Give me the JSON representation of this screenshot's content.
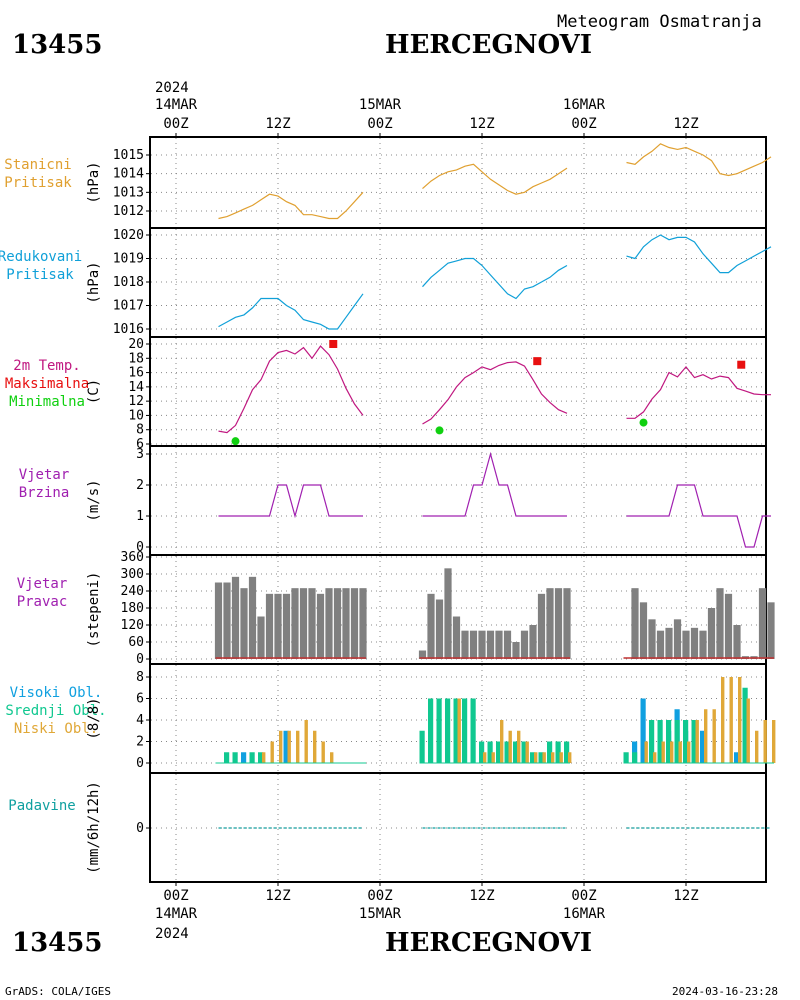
{
  "header": {
    "station_id": "13455",
    "station_name": "HERCEGNOVI",
    "subtitle": "Meteogram Osmatranja"
  },
  "footer": {
    "station_id": "13455",
    "station_name": "HERCEGNOVI",
    "credit": "GrADS: COLA/IGES",
    "timestamp": "2024-03-16-23:28"
  },
  "time_axis": {
    "top_year": "2024",
    "bottom_year": "2024",
    "dates": [
      "14MAR",
      "15MAR",
      "16MAR"
    ],
    "tick_labels": [
      "00Z",
      "12Z",
      "00Z",
      "12Z",
      "00Z",
      "12Z"
    ]
  },
  "panel_labels": {
    "pressure": [
      "Stanicni",
      "Pritisak"
    ],
    "pressure_unit": "(hPa)",
    "reduced": [
      "Redukovani",
      "Pritisak"
    ],
    "reduced_unit": "(hPa)",
    "temp": [
      "2m Temp.",
      "Maksimalna",
      "Minimalna"
    ],
    "temp_unit": "(C)",
    "wind_speed": [
      "Vjetar",
      "Brzina"
    ],
    "wind_speed_unit": "(m/s)",
    "wind_dir": [
      "Vjetar",
      "Pravac"
    ],
    "wind_dir_unit": "(stepeni)",
    "clouds": [
      "Visoki Obl.",
      "Srednji Obl.",
      "Niski Obl."
    ],
    "clouds_unit": "(8/8)",
    "precip": [
      "Padavine"
    ],
    "precip_unit": "(mm/6h/12h)"
  },
  "colors": {
    "pressure": "#e0a030",
    "reduced": "#10a0d8",
    "temp": "#c01880",
    "tmax": "#e81010",
    "tmin": "#10d010",
    "wind": "#a020b0",
    "dir_bar": "#808080",
    "cloud_high": "#10a0e0",
    "cloud_mid": "#10c890",
    "cloud_low": "#e0a838",
    "precip": "#10a0a0"
  },
  "chart_data": [
    {
      "type": "line",
      "title": "Stanicni Pritisak",
      "ylabel": "(hPa)",
      "ylim": [
        1011.3,
        1015.8
      ],
      "yticks": [
        1012,
        1013,
        1014,
        1015
      ],
      "grid": true,
      "segments": [
        {
          "x": [
            5,
            6,
            7,
            8,
            9,
            10,
            11,
            12,
            13,
            14,
            15,
            16,
            17,
            18,
            19,
            20,
            21,
            22
          ],
          "y": [
            1011.6,
            1011.7,
            1011.9,
            1012.1,
            1012.3,
            1012.6,
            1012.9,
            1012.8,
            1012.5,
            1012.3,
            1011.8,
            1011.8,
            1011.7,
            1011.6,
            1011.6,
            1012.0,
            1012.5,
            1013.0
          ]
        },
        {
          "x": [
            29,
            30,
            31,
            32,
            33,
            34,
            35,
            36,
            37,
            38,
            39,
            40,
            41,
            42,
            43,
            44,
            45,
            46
          ],
          "y": [
            1013.2,
            1013.6,
            1013.9,
            1014.1,
            1014.2,
            1014.4,
            1014.5,
            1014.1,
            1013.7,
            1013.4,
            1013.1,
            1012.9,
            1013.0,
            1013.3,
            1013.5,
            1013.7,
            1014.0,
            1014.3
          ]
        },
        {
          "x": [
            53,
            54,
            55,
            56,
            57,
            58,
            59,
            60,
            61,
            62,
            63,
            64,
            65,
            66,
            67,
            68,
            69,
            70
          ],
          "y": [
            1014.6,
            1014.5,
            1014.9,
            1015.2,
            1015.6,
            1015.4,
            1015.3,
            1015.4,
            1015.2,
            1015.0,
            1014.7,
            1014.0,
            1013.9,
            1014.0,
            1014.2,
            1014.4,
            1014.6,
            1014.9
          ]
        }
      ]
    },
    {
      "type": "line",
      "title": "Redukovani Pritisak",
      "ylabel": "(hPa)",
      "ylim": [
        1015.7,
        1020.3
      ],
      "yticks": [
        1016,
        1017,
        1018,
        1019,
        1020
      ],
      "grid": true,
      "segments": [
        {
          "x": [
            5,
            6,
            7,
            8,
            9,
            10,
            11,
            12,
            13,
            14,
            15,
            16,
            17,
            18,
            19,
            20,
            21,
            22
          ],
          "y": [
            1016.1,
            1016.3,
            1016.5,
            1016.6,
            1016.9,
            1017.3,
            1017.3,
            1017.3,
            1017.0,
            1016.8,
            1016.4,
            1016.3,
            1016.2,
            1016.0,
            1016.0,
            1016.5,
            1017.0,
            1017.5
          ]
        },
        {
          "x": [
            29,
            30,
            31,
            32,
            33,
            34,
            35,
            36,
            37,
            38,
            39,
            40,
            41,
            42,
            43,
            44,
            45,
            46
          ],
          "y": [
            1017.8,
            1018.2,
            1018.5,
            1018.8,
            1018.9,
            1019.0,
            1019.0,
            1018.7,
            1018.3,
            1017.9,
            1017.5,
            1017.3,
            1017.7,
            1017.8,
            1018.0,
            1018.2,
            1018.5,
            1018.7
          ]
        },
        {
          "x": [
            53,
            54,
            55,
            56,
            57,
            58,
            59,
            60,
            61,
            62,
            63,
            64,
            65,
            66,
            67,
            68,
            69,
            70
          ],
          "y": [
            1019.1,
            1019.0,
            1019.5,
            1019.8,
            1020.0,
            1019.8,
            1019.9,
            1019.9,
            1019.7,
            1019.2,
            1018.8,
            1018.4,
            1018.4,
            1018.7,
            1018.9,
            1019.1,
            1019.3,
            1019.5
          ]
        }
      ]
    },
    {
      "type": "line",
      "title": "2m Temp. Maksimalna Minimalna",
      "ylabel": "(C)",
      "ylim": [
        5,
        21
      ],
      "yticks": [
        6,
        8,
        10,
        12,
        14,
        16,
        18,
        20
      ],
      "grid": true,
      "segments": [
        {
          "x": [
            5,
            6,
            7,
            8,
            9,
            10,
            11,
            12,
            13,
            14,
            15,
            16,
            17,
            18,
            19,
            20,
            21,
            22
          ],
          "y": [
            7.8,
            7.6,
            8.6,
            11.0,
            13.6,
            15.0,
            17.6,
            18.8,
            19.1,
            18.6,
            19.5,
            18.0,
            19.7,
            18.5,
            16.5,
            13.8,
            11.6,
            10.0
          ]
        },
        {
          "x": [
            29,
            30,
            31,
            32,
            33,
            34,
            35,
            36,
            37,
            38,
            39,
            40,
            41,
            42,
            43,
            44,
            45,
            46
          ],
          "y": [
            8.8,
            9.5,
            10.8,
            12.2,
            14.0,
            15.3,
            16.0,
            16.8,
            16.4,
            17.0,
            17.4,
            17.5,
            16.9,
            15.0,
            13.0,
            11.8,
            10.8,
            10.3
          ]
        },
        {
          "x": [
            53,
            54,
            55,
            56,
            57,
            58,
            59,
            60,
            61,
            62,
            63,
            64,
            65,
            66,
            67,
            68,
            69,
            70
          ],
          "y": [
            9.6,
            9.6,
            10.5,
            12.3,
            13.6,
            16.0,
            15.4,
            16.8,
            15.3,
            15.7,
            15.1,
            15.5,
            15.3,
            13.8,
            13.4,
            13.0,
            12.9,
            12.9
          ]
        }
      ],
      "tmax": [
        {
          "x": 18.5,
          "y": 20.0
        },
        {
          "x": 42.5,
          "y": 17.6
        },
        {
          "x": 66.5,
          "y": 17.1
        }
      ],
      "tmin": [
        {
          "x": 7,
          "y": 6.4
        },
        {
          "x": 31,
          "y": 7.9
        },
        {
          "x": 55,
          "y": 9.0
        }
      ]
    },
    {
      "type": "line",
      "title": "Vjetar Brzina",
      "ylabel": "(m/s)",
      "ylim": [
        0,
        3.2
      ],
      "yticks": [
        0,
        1,
        2,
        3
      ],
      "grid": true,
      "segments": [
        {
          "x": [
            5,
            6,
            7,
            8,
            9,
            10,
            11,
            12,
            13,
            14,
            15,
            16,
            17,
            18,
            19,
            20,
            21,
            22
          ],
          "y": [
            1,
            1,
            1,
            1,
            1,
            1,
            1,
            2,
            2,
            1,
            2,
            2,
            2,
            1,
            1,
            1,
            1,
            1
          ]
        },
        {
          "x": [
            29,
            30,
            31,
            32,
            33,
            34,
            35,
            36,
            37,
            38,
            39,
            40,
            41,
            42,
            43,
            44,
            45,
            46
          ],
          "y": [
            1,
            1,
            1,
            1,
            1,
            1,
            2,
            2,
            3,
            2,
            2,
            1,
            1,
            1,
            1,
            1,
            1,
            1
          ]
        },
        {
          "x": [
            53,
            54,
            55,
            56,
            57,
            58,
            59,
            60,
            61,
            62,
            63,
            64,
            65,
            66,
            67,
            68,
            69,
            70
          ],
          "y": [
            1,
            1,
            1,
            1,
            1,
            1,
            2,
            2,
            2,
            1,
            1,
            1,
            1,
            1,
            0,
            0,
            1,
            1
          ]
        }
      ]
    },
    {
      "type": "bar",
      "title": "Vjetar Pravac",
      "ylabel": "(stepeni)",
      "ylim": [
        0,
        360
      ],
      "yticks": [
        0,
        60,
        120,
        180,
        240,
        300,
        360
      ],
      "grid": true,
      "x": [
        5,
        6,
        7,
        8,
        9,
        10,
        11,
        12,
        13,
        14,
        15,
        16,
        17,
        18,
        19,
        20,
        21,
        22,
        29,
        30,
        31,
        32,
        33,
        34,
        35,
        36,
        37,
        38,
        39,
        40,
        41,
        42,
        43,
        44,
        45,
        46,
        53,
        54,
        55,
        56,
        57,
        58,
        59,
        60,
        61,
        62,
        63,
        64,
        65,
        66,
        67,
        68,
        69,
        70
      ],
      "values": [
        270,
        270,
        290,
        250,
        290,
        150,
        230,
        230,
        230,
        250,
        250,
        250,
        230,
        250,
        250,
        250,
        250,
        250,
        30,
        230,
        210,
        320,
        150,
        100,
        100,
        100,
        100,
        100,
        100,
        60,
        100,
        120,
        230,
        250,
        250,
        250,
        0,
        250,
        200,
        140,
        100,
        110,
        140,
        100,
        110,
        100,
        180,
        250,
        230,
        120,
        10,
        10,
        250,
        200
      ]
    },
    {
      "type": "bar",
      "title": "Visoki Obl. Srednji Obl. Niski Obl.",
      "ylabel": "(8/8)",
      "ylim": [
        0,
        8.5
      ],
      "yticks": [
        0,
        2,
        4,
        6,
        8
      ],
      "grid": true,
      "x": [
        5,
        6,
        7,
        8,
        9,
        10,
        11,
        12,
        13,
        14,
        15,
        16,
        17,
        18,
        19,
        20,
        21,
        22,
        29,
        30,
        31,
        32,
        33,
        34,
        35,
        36,
        37,
        38,
        39,
        40,
        41,
        42,
        43,
        44,
        45,
        46,
        53,
        54,
        55,
        56,
        57,
        58,
        59,
        60,
        61,
        62,
        63,
        64,
        65,
        66,
        67,
        68,
        69,
        70
      ],
      "series": [
        {
          "name": "Visoki Obl.",
          "values": [
            0,
            0,
            0,
            1,
            0,
            0,
            0,
            0,
            3,
            0,
            0,
            0,
            0,
            0,
            0,
            0,
            0,
            0,
            0,
            0,
            0,
            0,
            0,
            0,
            0,
            0,
            0,
            0,
            0,
            0,
            0,
            0,
            0,
            0,
            0,
            0,
            0,
            2,
            6,
            1,
            1,
            3,
            5,
            3,
            3,
            3,
            0,
            0,
            0,
            1,
            0,
            0,
            0,
            0
          ]
        },
        {
          "name": "Srednji Obl.",
          "values": [
            0,
            1,
            1,
            0,
            1,
            1,
            0,
            0,
            0,
            0,
            0,
            0,
            0,
            0,
            0,
            0,
            0,
            0,
            3,
            6,
            6,
            6,
            6,
            6,
            6,
            2,
            2,
            2,
            2,
            2,
            2,
            1,
            1,
            2,
            2,
            2,
            1,
            1,
            0,
            4,
            4,
            4,
            4,
            4,
            4,
            0,
            0,
            0,
            0,
            0,
            7,
            0,
            0,
            0
          ]
        },
        {
          "name": "Niski Obl.",
          "values": [
            0,
            0,
            0,
            0,
            0,
            1,
            2,
            3,
            3,
            3,
            4,
            3,
            2,
            1,
            0,
            0,
            0,
            0,
            0,
            0,
            0,
            0,
            6,
            0,
            0,
            1,
            1,
            4,
            3,
            3,
            2,
            1,
            1,
            1,
            1,
            1,
            0,
            0,
            2,
            1,
            2,
            2,
            2,
            2,
            4,
            5,
            5,
            8,
            8,
            8,
            6,
            3,
            4,
            4
          ]
        }
      ]
    },
    {
      "type": "line",
      "title": "Padavine",
      "ylabel": "(mm/6h/12h)",
      "yticks": [
        0
      ],
      "grid": true,
      "segments": [
        {
          "x": [
            5,
            22
          ],
          "y": [
            0,
            0
          ]
        },
        {
          "x": [
            29,
            46
          ],
          "y": [
            0,
            0
          ]
        },
        {
          "x": [
            53,
            70
          ],
          "y": [
            0,
            0
          ]
        }
      ]
    }
  ]
}
